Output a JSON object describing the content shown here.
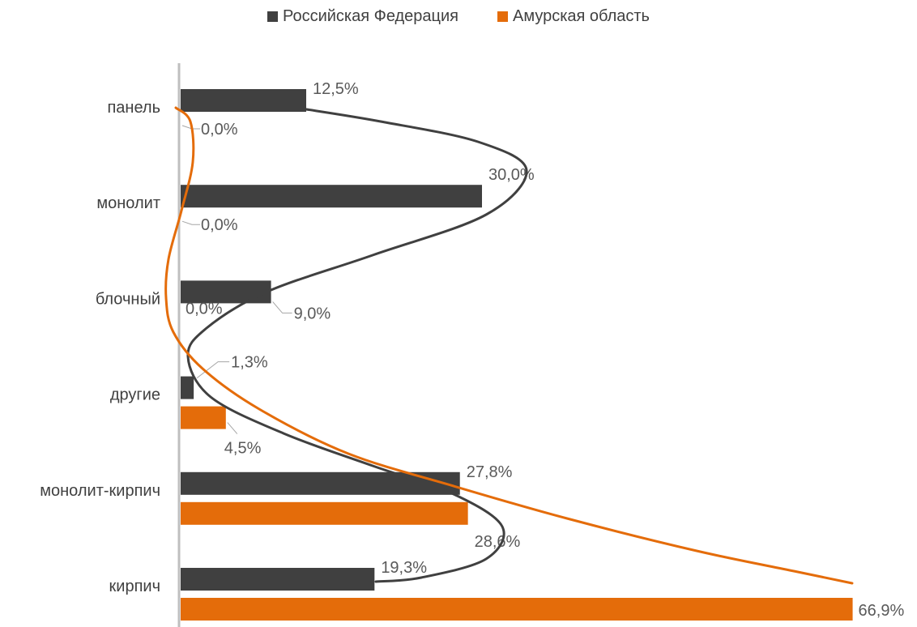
{
  "chart_data": {
    "type": "bar",
    "orientation": "horizontal",
    "categories": [
      "панель",
      "монолит",
      "блочный",
      "другие",
      "монолит-кирпич",
      "кирпич"
    ],
    "series": [
      {
        "name": "Российская Федерация",
        "color": "#404040",
        "values": [
          12.5,
          30.0,
          9.0,
          1.3,
          27.8,
          19.3
        ],
        "labels": [
          "12,5%",
          "30,0%",
          "9,0%",
          "1,3%",
          "27,8%",
          "19,3%"
        ]
      },
      {
        "name": "Амурская область",
        "color": "#E46C0A",
        "values": [
          0.0,
          0.0,
          0.0,
          4.5,
          28.6,
          66.9
        ],
        "labels": [
          "0,0%",
          "0,0%",
          "0,0%",
          "4,5%",
          "28,6%",
          "66,9%"
        ]
      }
    ],
    "xlim": [
      0,
      67
    ],
    "grid": false,
    "legend": "top-center",
    "annotations": "hand-drawn freehand curves overlaid connecting bar ends for each series"
  }
}
